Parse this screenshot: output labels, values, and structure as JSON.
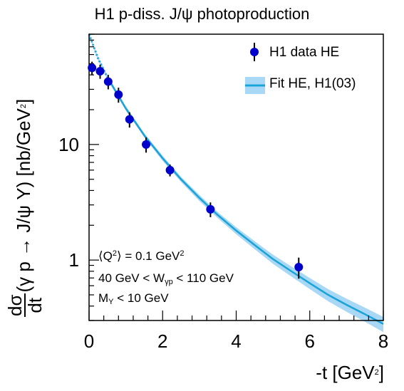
{
  "title": "H1 p-diss. J/ψ photoproduction",
  "xlabel_main": "-t [GeV",
  "xlabel_sup": "2",
  "xlabel_tail": "]",
  "ylabel_num": "dσ",
  "ylabel_den": "dt",
  "ylabel_main": "(γ p → J/ψ Y) [nb/GeV",
  "ylabel_sup": "2",
  "ylabel_tail": "]",
  "legend": {
    "data_label": "H1 data HE",
    "fit_label": "Fit HE, H1(03)"
  },
  "annotations": {
    "q2_pre": "⟨Q",
    "q2_sup": "2",
    "q2_mid": "⟩ = 0.1 GeV",
    "q2_sup2": "2",
    "w_pre": "40 GeV < W",
    "w_sub": "γp",
    "w_post": " < 110 GeV",
    "m_pre": "M",
    "m_sub": "Y",
    "m_post": " < 10 GeV"
  },
  "colors": {
    "data_marker": "#0000cc",
    "fit_line": "#1aa3d6",
    "fit_band": "#a8d8f5"
  },
  "chart_data": {
    "type": "scatter",
    "title": "H1 p-diss. J/ψ photoproduction",
    "xlabel": "-t [GeV^2]",
    "ylabel": "dσ/dt(γ p → J/ψ Y) [nb/GeV^2]",
    "xlim": [
      0,
      8
    ],
    "ylim": [
      0.3,
      90
    ],
    "yscale": "log",
    "x_ticks": [
      "0",
      "2",
      "4",
      "6",
      "8"
    ],
    "y_ticks": [
      "1",
      "10"
    ],
    "legend_position": "top-right",
    "series": [
      {
        "name": "H1 data HE",
        "kind": "points-with-errors",
        "x": [
          0.08,
          0.3,
          0.52,
          0.8,
          1.1,
          1.55,
          2.2,
          3.3,
          5.7
        ],
        "y": [
          46,
          43,
          35,
          27,
          16.5,
          10,
          6,
          2.75,
          0.87
        ],
        "y_err_low": [
          6,
          6,
          5,
          4,
          2.5,
          1.5,
          0.7,
          0.4,
          0.18
        ],
        "y_err_high": [
          6,
          6,
          5,
          4,
          2.5,
          1.5,
          0.7,
          0.4,
          0.18
        ]
      },
      {
        "name": "Fit HE, H1(03)",
        "kind": "line-with-band",
        "x": [
          0,
          0.25,
          0.5,
          1,
          1.5,
          2,
          2.5,
          3,
          3.5,
          4,
          4.5,
          5,
          5.5,
          6,
          6.5,
          7,
          7.5,
          8
        ],
        "y": [
          90,
          55,
          38,
          20.5,
          12,
          7.6,
          5.0,
          3.45,
          2.45,
          1.8,
          1.35,
          1.02,
          0.8,
          0.63,
          0.5,
          0.41,
          0.34,
          0.28
        ],
        "band_rel": [
          0.04,
          0.04,
          0.04,
          0.04,
          0.04,
          0.05,
          0.05,
          0.06,
          0.06,
          0.07,
          0.08,
          0.09,
          0.1,
          0.11,
          0.12,
          0.13,
          0.14,
          0.15
        ],
        "dotted_below_x": 0.5
      }
    ]
  }
}
